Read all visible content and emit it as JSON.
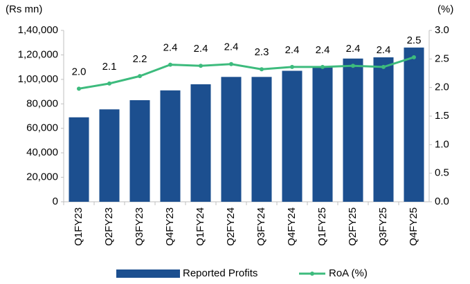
{
  "chart_data": {
    "type": "bar_line",
    "y_unit": "(Rs mn)",
    "y2_unit": "(%)",
    "categories": [
      "Q1FY23",
      "Q2FY23",
      "Q3FY23",
      "Q4FY23",
      "Q1FY24",
      "Q2FY24",
      "Q3FY24",
      "Q4FY24",
      "Q1FY25",
      "Q2FY25",
      "Q3FY25",
      "Q4FY25"
    ],
    "series": [
      {
        "name": "Reported Profits",
        "type": "bar",
        "color": "#1c4f8f",
        "values": [
          69000,
          75500,
          83000,
          91000,
          96000,
          102000,
          102000,
          107000,
          110000,
          117000,
          118000,
          126000
        ]
      },
      {
        "name": "RoA (%)",
        "type": "line",
        "axis": "y2",
        "color": "#3dbb7d",
        "values": [
          1.98,
          2.07,
          2.2,
          2.4,
          2.38,
          2.41,
          2.32,
          2.36,
          2.36,
          2.38,
          2.36,
          2.53
        ],
        "value_labels": [
          "2.0",
          "2.1",
          "2.2",
          "2.4",
          "2.4",
          "2.4",
          "2.3",
          "2.4",
          "2.4",
          "2.4",
          "2.4",
          "2.5"
        ]
      }
    ],
    "ylim": [
      0,
      140000
    ],
    "yticks": [
      0,
      {
        "value": 20000,
        "label": "20,000"
      },
      {
        "value": 40000,
        "label": "40,000"
      },
      {
        "value": 60000,
        "label": "60,000"
      },
      {
        "value": 80000,
        "label": "80,000"
      },
      {
        "value": 100000,
        "label": "1,00,000"
      },
      {
        "value": 120000,
        "label": "1,20,000"
      },
      {
        "value": 140000,
        "label": "1,40,000"
      }
    ],
    "y2lim": [
      0,
      3
    ],
    "y2ticks": [
      {
        "value": 0,
        "label": "0.0"
      },
      0.5,
      {
        "value": 1,
        "label": "1.0"
      },
      1.5,
      {
        "value": 2,
        "label": "2.0"
      },
      2.5,
      {
        "value": 3,
        "label": "3.0"
      }
    ],
    "legend": "bottom"
  }
}
